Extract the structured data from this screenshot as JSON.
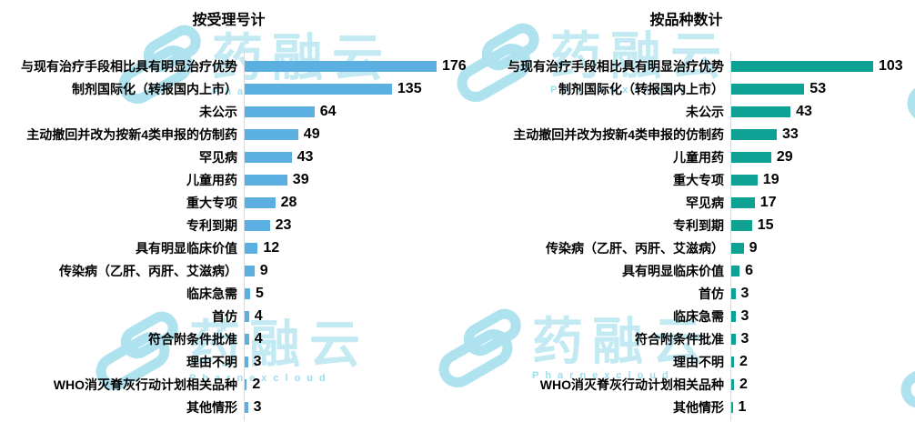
{
  "watermark": {
    "brand": "药融云",
    "subbrand": "Pharnexcloud",
    "color": "#bfe8f2"
  },
  "chart_data": [
    {
      "type": "bar",
      "orientation": "horizontal",
      "title": "按受理号计",
      "bar_color": "#5BB0E1",
      "axis_color": "#D9D9D9",
      "grid": false,
      "legend": null,
      "xlim": [
        0,
        196
      ],
      "categories": [
        "与现有治疗手段相比具有明显治疗优势",
        "制剂国际化（转报国内上市）",
        "未公示",
        "主动撤回并改为按新4类申报的仿制药",
        "罕见病",
        "儿童用药",
        "重大专项",
        "专利到期",
        "具有明显临床价值",
        "传染病（乙肝、丙肝、艾滋病）",
        "临床急需",
        "首仿",
        "符合附条件批准",
        "理由不明",
        "WHO消灭脊灰行动计划相关品种",
        "其他情形"
      ],
      "values": [
        176,
        135,
        64,
        49,
        43,
        39,
        28,
        23,
        12,
        9,
        5,
        4,
        4,
        3,
        2,
        3
      ]
    },
    {
      "type": "bar",
      "orientation": "horizontal",
      "title": "按品种数计",
      "bar_color": "#0DA294",
      "axis_color": "#D9D9D9",
      "grid": false,
      "legend": null,
      "xlim": [
        0,
        134
      ],
      "categories": [
        "与现有治疗手段相比具有明显治疗优势",
        "制剂国际化（转报国内上市）",
        "未公示",
        "主动撤回并改为按新4类申报的仿制药",
        "儿童用药",
        "重大专项",
        "罕见病",
        "专利到期",
        "传染病（乙肝、丙肝、艾滋病）",
        "具有明显临床价值",
        "首仿",
        "临床急需",
        "符合附条件批准",
        "理由不明",
        "WHO消灭脊灰行动计划相关品种",
        "其他情形"
      ],
      "values": [
        103,
        53,
        43,
        33,
        29,
        19,
        17,
        15,
        9,
        6,
        3,
        3,
        3,
        2,
        2,
        1
      ]
    }
  ]
}
